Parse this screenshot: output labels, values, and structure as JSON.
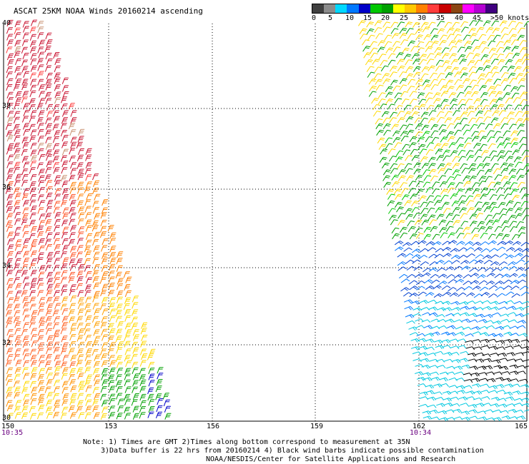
{
  "title": "ASCAT 25KM NOAA Winds 20160214 ascending",
  "scale": {
    "colors": [
      "#404040",
      "#8c8c8c",
      "#00d8ff",
      "#0078ff",
      "#0000c8",
      "#00c800",
      "#00a000",
      "#ffff00",
      "#ffc800",
      "#ff8000",
      "#ff3c3c",
      "#c80000",
      "#8b4513",
      "#ff00ff",
      "#b400d2",
      "#40007f"
    ],
    "labels": [
      "0",
      "5",
      "10",
      "15",
      "20",
      "25",
      "30",
      "35",
      "40",
      "45",
      ">50 knots"
    ]
  },
  "lat_labels": [
    "40",
    "38",
    "36",
    "34",
    "32",
    "30"
  ],
  "lon_labels": [
    "150",
    "153",
    "156",
    "159",
    "162",
    "165"
  ],
  "time_labels": [
    "10:35",
    "10:34"
  ],
  "notes": [
    "Note: 1) Times are GMT 2)Times along bottom correspond to measurement at 35N",
    "3)Data buffer is 22 hrs from 20160214 4) Black wind barbs indicate possible contamination",
    "NOAA/NESDIS/Center for Satellite Applications and Research"
  ]
}
